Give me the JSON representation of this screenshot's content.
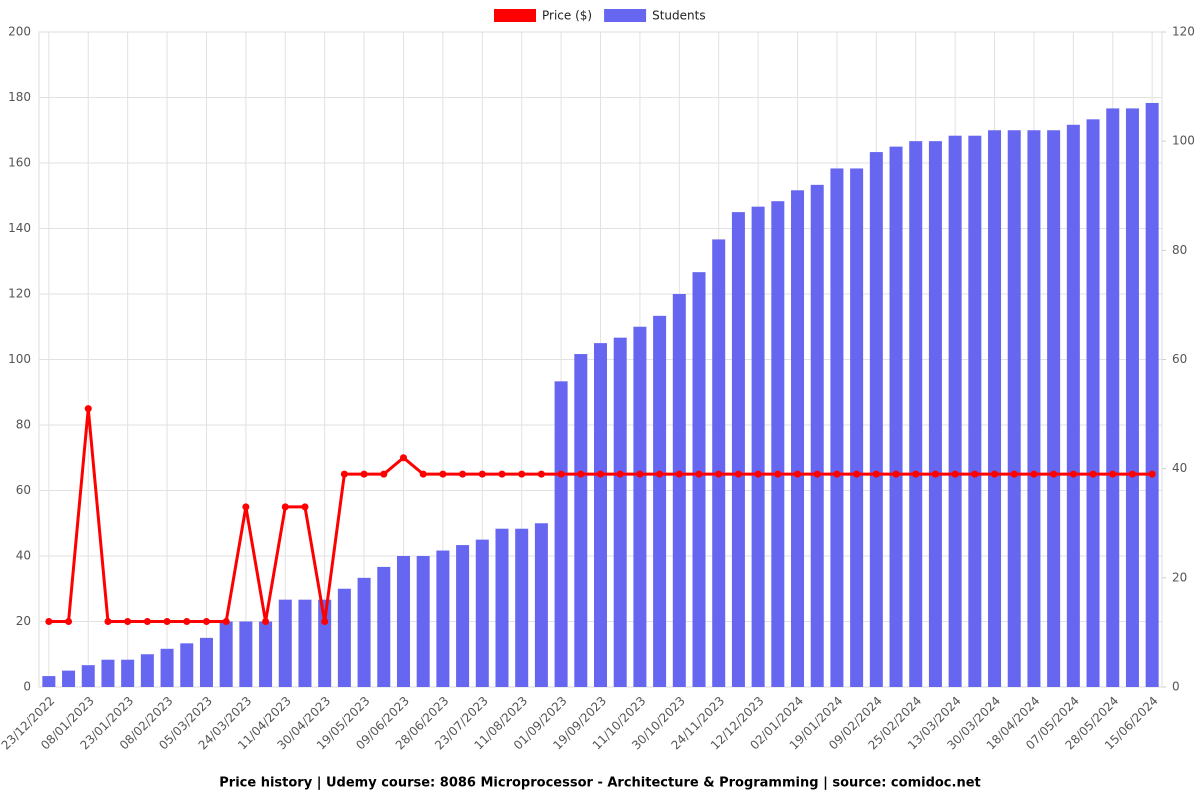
{
  "chart_data": {
    "type": "bar-line",
    "caption": "Price history | Udemy course: 8086 Microprocessor - Architecture & Programming | source: comidoc.net",
    "categories": [
      "23/12/2022",
      null,
      "08/01/2023",
      null,
      "23/01/2023",
      null,
      "08/02/2023",
      null,
      "05/03/2023",
      null,
      "24/03/2023",
      null,
      "11/04/2023",
      null,
      "30/04/2023",
      null,
      "19/05/2023",
      null,
      "09/06/2023",
      null,
      "28/06/2023",
      null,
      "23/07/2023",
      null,
      "11/08/2023",
      null,
      "01/09/2023",
      null,
      "19/09/2023",
      null,
      "11/10/2023",
      null,
      "30/10/2023",
      null,
      "24/11/2023",
      null,
      "12/12/2023",
      null,
      "02/01/2024",
      null,
      "19/01/2024",
      null,
      "09/02/2024",
      null,
      "25/02/2024",
      null,
      "13/03/2024",
      null,
      "30/03/2024",
      null,
      "18/04/2024",
      null,
      "07/05/2024",
      null,
      "28/05/2024",
      null,
      "15/06/2024"
    ],
    "series": [
      {
        "name": "Price ($)",
        "color": "#ff0000",
        "kind": "line",
        "axis": "y",
        "values": [
          20,
          20,
          85,
          20,
          20,
          20,
          20,
          20,
          20,
          20,
          55,
          20,
          55,
          55,
          20,
          65,
          65,
          65,
          70,
          65,
          65,
          65,
          65,
          65,
          65,
          65,
          65,
          65,
          65,
          65,
          65,
          65,
          65,
          65,
          65,
          65,
          65,
          65,
          65,
          65,
          65,
          65,
          65,
          65,
          65,
          65,
          65,
          65,
          65,
          65,
          65,
          65,
          65,
          65,
          65,
          65,
          65
        ]
      },
      {
        "name": "Students",
        "color": "#6666f0",
        "kind": "bar",
        "axis": "y2",
        "values": [
          2,
          3,
          4,
          5,
          5,
          6,
          7,
          8,
          9,
          12,
          12,
          12,
          16,
          16,
          16,
          18,
          20,
          22,
          24,
          24,
          25,
          26,
          27,
          29,
          29,
          30,
          56,
          61,
          63,
          64,
          66,
          68,
          72,
          76,
          82,
          87,
          88,
          89,
          91,
          92,
          95,
          95,
          98,
          99,
          100,
          100,
          101,
          101,
          102,
          102,
          102,
          102,
          103,
          104,
          106,
          106,
          107
        ]
      }
    ],
    "ylim": [
      0,
      200
    ],
    "yticks": [
      0,
      20,
      40,
      60,
      80,
      100,
      120,
      140,
      160,
      180,
      200
    ],
    "y2lim": [
      0,
      120
    ],
    "y2ticks": [
      0,
      20,
      40,
      60,
      80,
      100,
      120
    ],
    "grid": true,
    "legend": "top"
  }
}
